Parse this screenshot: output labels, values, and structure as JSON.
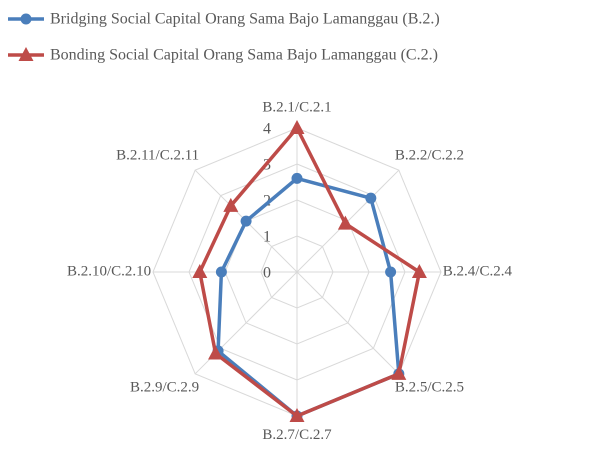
{
  "chart_data": {
    "type": "radar",
    "categories": [
      "B.2.1/C.2.1",
      "B.2.2/C.2.2",
      "B.2.4/C.2.4",
      "B.2.5/C.2.5",
      "B.2.7/C.2.7",
      "B.2.9/C.2.9",
      "B.2.10/C.2.10",
      "B.2.11/C.2.11"
    ],
    "series": [
      {
        "name": "Bridging Social Capital Orang Sama Bajo Lamanggau (B.2.)",
        "color": "#4a7ebb",
        "marker": "circle",
        "values": [
          2.6,
          2.9,
          2.6,
          4.0,
          4.0,
          3.1,
          2.1,
          2.0
        ]
      },
      {
        "name": "Bonding Social Capital Orang Sama Bajo Lamanggau (C.2.)",
        "color": "#be4b48",
        "marker": "triangle",
        "values": [
          4.0,
          1.9,
          3.4,
          4.0,
          4.0,
          3.2,
          2.7,
          2.6
        ]
      }
    ],
    "ylim": [
      0,
      4
    ],
    "yticks": [
      0,
      1,
      2,
      3,
      4
    ],
    "grid": true,
    "legend": "top"
  }
}
